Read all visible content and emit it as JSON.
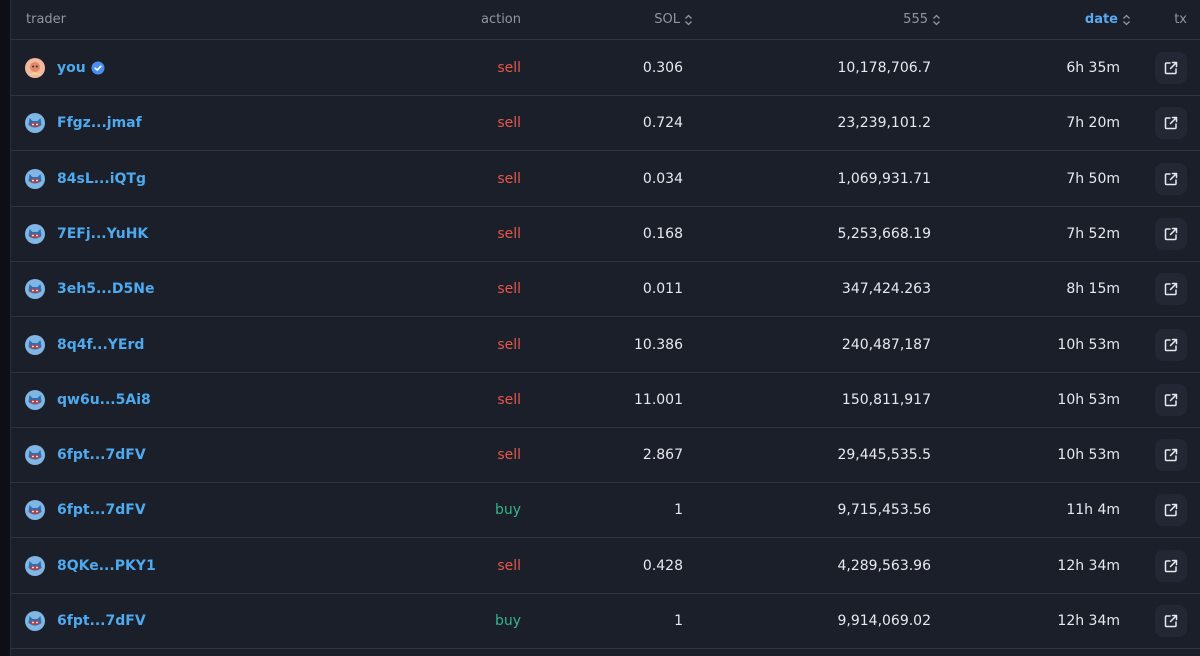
{
  "header": {
    "trader": "trader",
    "action": "action",
    "sol": "SOL",
    "token": "555",
    "date": "date",
    "tx": "tx"
  },
  "colors": {
    "accent": "#4fa9ee",
    "sell": "#e5574b",
    "buy": "#35b58a"
  },
  "icons": {
    "sort": "sort-updown-icon",
    "tx": "external-link-icon",
    "verified": "verified-badge-icon",
    "avatar_user": "user-avatar",
    "avatar_trader": "cat-avatar"
  },
  "rows": [
    {
      "trader": "you",
      "verified": true,
      "avatar": "user-avatar",
      "action": "sell",
      "sol": "0.306",
      "amount": "10,178,706.7",
      "date": "6h 35m"
    },
    {
      "trader": "Ffgz...jmaf",
      "verified": false,
      "avatar": "cat-avatar",
      "action": "sell",
      "sol": "0.724",
      "amount": "23,239,101.2",
      "date": "7h 20m"
    },
    {
      "trader": "84sL...iQTg",
      "verified": false,
      "avatar": "cat-avatar",
      "action": "sell",
      "sol": "0.034",
      "amount": "1,069,931.71",
      "date": "7h 50m"
    },
    {
      "trader": "7EFj...YuHK",
      "verified": false,
      "avatar": "cat-avatar",
      "action": "sell",
      "sol": "0.168",
      "amount": "5,253,668.19",
      "date": "7h 52m"
    },
    {
      "trader": "3eh5...D5Ne",
      "verified": false,
      "avatar": "cat-avatar",
      "action": "sell",
      "sol": "0.011",
      "amount": "347,424.263",
      "date": "8h 15m"
    },
    {
      "trader": "8q4f...YErd",
      "verified": false,
      "avatar": "cat-avatar",
      "action": "sell",
      "sol": "10.386",
      "amount": "240,487,187",
      "date": "10h 53m"
    },
    {
      "trader": "qw6u...5Ai8",
      "verified": false,
      "avatar": "cat-avatar",
      "action": "sell",
      "sol": "11.001",
      "amount": "150,811,917",
      "date": "10h 53m"
    },
    {
      "trader": "6fpt...7dFV",
      "verified": false,
      "avatar": "cat-avatar",
      "action": "sell",
      "sol": "2.867",
      "amount": "29,445,535.5",
      "date": "10h 53m"
    },
    {
      "trader": "6fpt...7dFV",
      "verified": false,
      "avatar": "cat-avatar",
      "action": "buy",
      "sol": "1",
      "amount": "9,715,453.56",
      "date": "11h 4m"
    },
    {
      "trader": "8QKe...PKY1",
      "verified": false,
      "avatar": "cat-avatar",
      "action": "sell",
      "sol": "0.428",
      "amount": "4,289,563.96",
      "date": "12h 34m"
    },
    {
      "trader": "6fpt...7dFV",
      "verified": false,
      "avatar": "cat-avatar",
      "action": "buy",
      "sol": "1",
      "amount": "9,914,069.02",
      "date": "12h 34m"
    }
  ]
}
